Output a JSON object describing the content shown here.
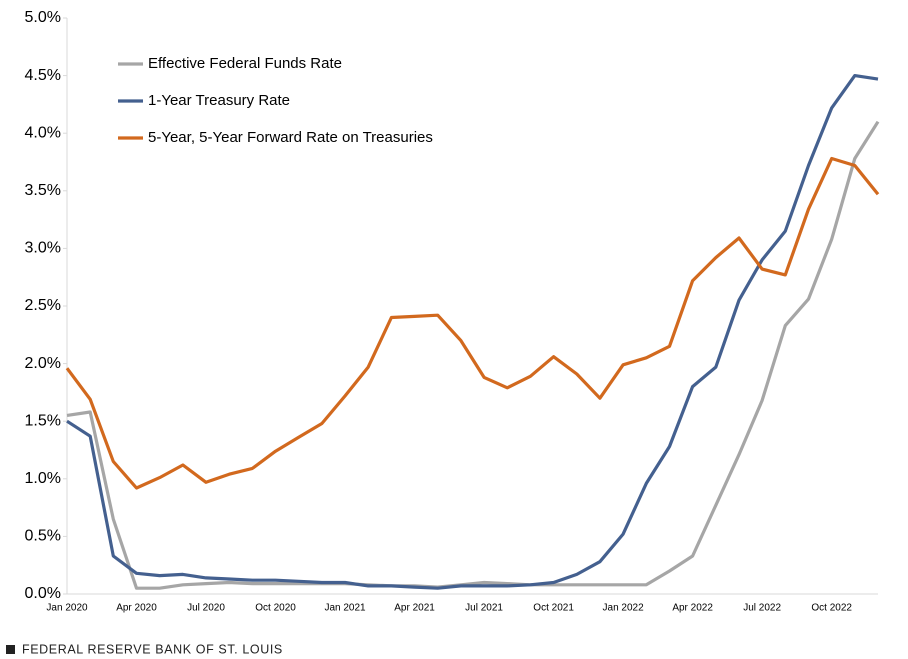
{
  "chart_data": {
    "type": "line",
    "categories": [
      "Jan 2020",
      null,
      null,
      "Apr 2020",
      null,
      null,
      "Jul 2020",
      null,
      null,
      "Oct 2020",
      null,
      null,
      "Jan 2021",
      null,
      null,
      "Apr 2021",
      null,
      null,
      "Jul 2021",
      null,
      null,
      "Oct 2021",
      null,
      null,
      "Jan 2022",
      null,
      null,
      "Apr 2022",
      null,
      null,
      "Jul 2022",
      null,
      null,
      "Oct 2022",
      null,
      null
    ],
    "series": [
      {
        "name": "Effective Federal Funds Rate",
        "color": "#a6a6a6",
        "values": [
          1.55,
          1.58,
          0.65,
          0.05,
          0.05,
          0.08,
          0.09,
          0.1,
          0.09,
          0.09,
          0.09,
          0.09,
          0.09,
          0.08,
          0.07,
          0.07,
          0.06,
          0.08,
          0.1,
          0.09,
          0.08,
          0.08,
          0.08,
          0.08,
          0.08,
          0.08,
          0.2,
          0.33,
          0.77,
          1.21,
          1.68,
          2.33,
          2.56,
          3.08,
          3.78,
          4.1
        ]
      },
      {
        "name": "1-Year Treasury Rate",
        "color": "#44608f",
        "values": [
          1.5,
          1.37,
          0.33,
          0.18,
          0.16,
          0.17,
          0.14,
          0.13,
          0.12,
          0.12,
          0.11,
          0.1,
          0.1,
          0.07,
          0.07,
          0.06,
          0.05,
          0.07,
          0.07,
          0.07,
          0.08,
          0.1,
          0.17,
          0.28,
          0.52,
          0.96,
          1.28,
          1.8,
          1.97,
          2.55,
          2.9,
          3.15,
          3.72,
          4.22,
          4.5,
          4.47
        ]
      },
      {
        "name": "5-Year, 5-Year Forward Rate on Treasuries",
        "color": "#d2691e",
        "values": [
          1.96,
          1.69,
          1.15,
          0.92,
          1.01,
          1.12,
          0.97,
          1.04,
          1.09,
          1.24,
          1.36,
          1.48,
          1.72,
          1.97,
          2.4,
          2.41,
          2.42,
          2.2,
          1.88,
          1.79,
          1.89,
          2.06,
          1.91,
          1.7,
          1.99,
          2.05,
          2.15,
          2.72,
          2.92,
          3.09,
          2.82,
          2.77,
          3.34,
          3.78,
          3.72,
          3.47
        ]
      }
    ],
    "ylim": [
      0,
      5
    ],
    "yticks": [
      {
        "value": 0,
        "label": "0.0%"
      },
      {
        "value": 0.5,
        "label": "0.5%"
      },
      {
        "value": 1,
        "label": "1.0%"
      },
      {
        "value": 1.5,
        "label": "1.5%"
      },
      {
        "value": 2,
        "label": "2.0%"
      },
      {
        "value": 2.5,
        "label": "2.5%"
      },
      {
        "value": 3,
        "label": "3.0%"
      },
      {
        "value": 3.5,
        "label": "3.5%"
      },
      {
        "value": 4,
        "label": "4.0%"
      },
      {
        "value": 4.5,
        "label": "4.5%"
      },
      {
        "value": 5,
        "label": "5.0%"
      }
    ],
    "grid": false,
    "legend": "upper left",
    "source": "FEDERAL RESERVE BANK OF ST. LOUIS"
  }
}
